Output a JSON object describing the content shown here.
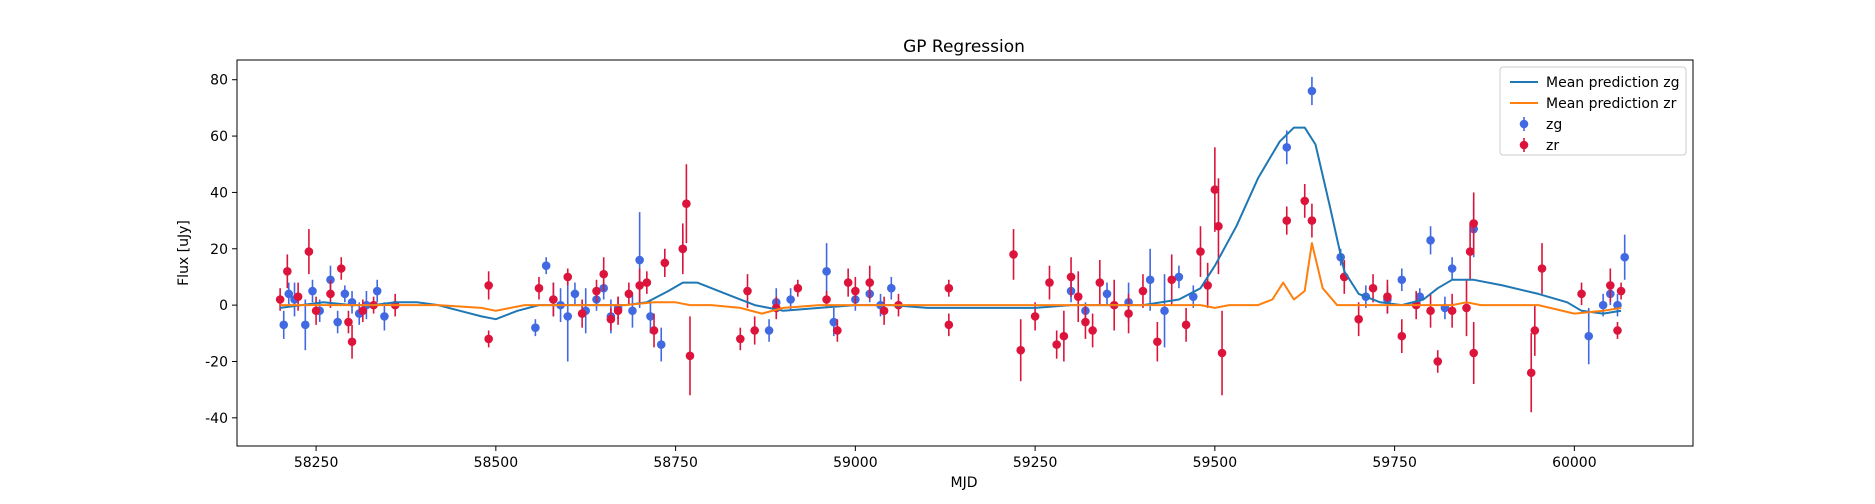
{
  "chart_data": {
    "type": "scatter",
    "title": "GP Regression",
    "xlabel": "MJD",
    "ylabel": "Flux [uJy]",
    "xlim": [
      58140,
      60165
    ],
    "ylim": [
      -50,
      87
    ],
    "xticks": [
      58250,
      58500,
      58750,
      59000,
      59250,
      59500,
      59750,
      60000
    ],
    "yticks": [
      -40,
      -20,
      0,
      20,
      40,
      60,
      80
    ],
    "legend_position": "top-right",
    "grid": false,
    "colors": {
      "line_zg": "#1f77b4",
      "line_zr": "#ff7f0e",
      "pts_zg": "#4169e1",
      "pts_zr": "#dc143c"
    },
    "legend": [
      {
        "label": "Mean prediction zg",
        "kind": "line",
        "color": "#1f77b4"
      },
      {
        "label": "Mean prediction zr",
        "kind": "line",
        "color": "#ff7f0e"
      },
      {
        "label": "zg",
        "kind": "point",
        "color": "#4169e1"
      },
      {
        "label": "zr",
        "kind": "point",
        "color": "#dc143c"
      }
    ],
    "lines": {
      "zg": {
        "name": "Mean prediction zg",
        "x": [
          58200,
          58230,
          58260,
          58300,
          58330,
          58360,
          58390,
          58420,
          58450,
          58480,
          58500,
          58530,
          58560,
          58600,
          58640,
          58680,
          58710,
          58740,
          58760,
          58780,
          58800,
          58830,
          58860,
          58900,
          58950,
          59000,
          59050,
          59100,
          59150,
          59200,
          59250,
          59300,
          59350,
          59400,
          59450,
          59480,
          59500,
          59530,
          59560,
          59590,
          59610,
          59625,
          59640,
          59660,
          59680,
          59700,
          59730,
          59760,
          59790,
          59810,
          59830,
          59860,
          59900,
          59950,
          59990,
          60010,
          60040,
          60065
        ],
        "y": [
          -1,
          0,
          1,
          0,
          0,
          1,
          1,
          0,
          -2,
          -4,
          -5,
          -2,
          0,
          0,
          0,
          0,
          1,
          5,
          8,
          8,
          6,
          3,
          0,
          -2,
          -1,
          0,
          0,
          -1,
          -1,
          -1,
          -1,
          0,
          0,
          0,
          2,
          6,
          14,
          28,
          45,
          58,
          63,
          63,
          57,
          35,
          12,
          4,
          1,
          0,
          2,
          6,
          9,
          9,
          7,
          4,
          1,
          -2,
          -3,
          -2
        ]
      },
      "zr": {
        "name": "Mean prediction zr",
        "x": [
          58200,
          58300,
          58420,
          58480,
          58500,
          58540,
          58600,
          58680,
          58720,
          58750,
          58770,
          58800,
          58840,
          58870,
          58900,
          58950,
          59000,
          59100,
          59200,
          59300,
          59400,
          59450,
          59480,
          59500,
          59520,
          59560,
          59580,
          59595,
          59610,
          59625,
          59635,
          59650,
          59670,
          59700,
          59750,
          59800,
          59830,
          59850,
          59870,
          59900,
          59950,
          60000,
          60040,
          60065
        ],
        "y": [
          0,
          0,
          0,
          -1,
          -2,
          0,
          0,
          0,
          1,
          1,
          0,
          0,
          -1,
          -3,
          -1,
          0,
          0,
          0,
          0,
          0,
          0,
          0,
          0,
          -1,
          0,
          0,
          2,
          8,
          2,
          5,
          22,
          6,
          0,
          0,
          0,
          0,
          0,
          1,
          0,
          0,
          0,
          -3,
          -2,
          -1
        ]
      }
    },
    "series": [
      {
        "name": "zg",
        "x": [
          58205,
          58212,
          58220,
          58235,
          58245,
          58255,
          58270,
          58280,
          58290,
          58300,
          58310,
          58320,
          58335,
          58345,
          58555,
          58570,
          58580,
          58590,
          58600,
          58610,
          58625,
          58640,
          58650,
          58660,
          58670,
          58690,
          58700,
          58715,
          58730,
          58760,
          58880,
          58890,
          58910,
          58960,
          58970,
          59000,
          59020,
          59035,
          59050,
          59300,
          59320,
          59350,
          59380,
          59410,
          59430,
          59450,
          59470,
          59600,
          59635,
          59675,
          59680,
          59710,
          59740,
          59760,
          59785,
          59800,
          59820,
          59830,
          59860,
          60020,
          60040,
          60050,
          60060,
          60070
        ],
        "y": [
          -7,
          4,
          2,
          -7,
          5,
          -2,
          9,
          -6,
          4,
          1,
          -3,
          0,
          5,
          -4,
          -8,
          14,
          2,
          0,
          -4,
          4,
          -2,
          2,
          6,
          -4,
          -1,
          -2,
          16,
          -4,
          -14,
          20,
          -9,
          1,
          2,
          12,
          -6,
          2,
          4,
          0,
          6,
          5,
          -2,
          4,
          1,
          9,
          -2,
          10,
          3,
          56,
          76,
          17,
          10,
          3,
          2,
          9,
          3,
          23,
          -1,
          13,
          27,
          -11,
          0,
          4,
          0,
          17
        ],
        "err": [
          5,
          4,
          6,
          9,
          4,
          4,
          5,
          4,
          3,
          4,
          4,
          5,
          4,
          5,
          3,
          3,
          6,
          6,
          16,
          4,
          8,
          4,
          4,
          6,
          4,
          6,
          17,
          6,
          6,
          7,
          4,
          5,
          4,
          10,
          5,
          4,
          3,
          4,
          4,
          4,
          3,
          4,
          7,
          11,
          13,
          4,
          4,
          6,
          5,
          3,
          4,
          4,
          5,
          4,
          3,
          5,
          4,
          4,
          10,
          10,
          4,
          4,
          4,
          8
        ]
      },
      {
        "name": "zr",
        "x": [
          58200,
          58210,
          58225,
          58240,
          58250,
          58270,
          58285,
          58295,
          58300,
          58315,
          58330,
          58360,
          58490,
          58490,
          58560,
          58580,
          58600,
          58620,
          58640,
          58650,
          58660,
          58670,
          58685,
          58700,
          58710,
          58720,
          58735,
          58760,
          58765,
          58770,
          58840,
          58850,
          58860,
          58890,
          58920,
          58960,
          58975,
          58990,
          59000,
          59020,
          59040,
          59060,
          59130,
          59130,
          59220,
          59230,
          59250,
          59270,
          59280,
          59290,
          59300,
          59310,
          59320,
          59330,
          59340,
          59360,
          59380,
          59400,
          59420,
          59440,
          59460,
          59480,
          59490,
          59500,
          59505,
          59510,
          59600,
          59625,
          59635,
          59680,
          59700,
          59720,
          59740,
          59760,
          59780,
          59800,
          59810,
          59830,
          59850,
          59855,
          59860,
          59860,
          59940,
          59945,
          59955,
          60010,
          60050,
          60060,
          60065
        ],
        "y": [
          2,
          12,
          3,
          19,
          -2,
          4,
          13,
          -6,
          -13,
          -2,
          0,
          0,
          -12,
          7,
          6,
          2,
          10,
          -3,
          5,
          11,
          -5,
          -2,
          4,
          7,
          8,
          -9,
          15,
          20,
          36,
          -18,
          -12,
          5,
          -9,
          -1,
          6,
          2,
          -9,
          8,
          5,
          8,
          -2,
          0,
          6,
          -7,
          18,
          -16,
          -4,
          8,
          -14,
          -11,
          10,
          3,
          -6,
          -9,
          8,
          0,
          -3,
          5,
          -13,
          9,
          -7,
          19,
          7,
          41,
          28,
          -17,
          30,
          37,
          30,
          10,
          -5,
          6,
          3,
          -11,
          0,
          -2,
          -20,
          -2,
          -1,
          19,
          29,
          -17,
          -24,
          -9,
          13,
          4,
          7,
          -9,
          5
        ],
        "err": [
          4,
          6,
          5,
          8,
          5,
          5,
          4,
          4,
          6,
          4,
          3,
          4,
          3,
          5,
          4,
          6,
          3,
          5,
          4,
          6,
          4,
          5,
          4,
          6,
          4,
          6,
          5,
          9,
          14,
          14,
          4,
          6,
          5,
          4,
          3,
          3,
          4,
          5,
          5,
          6,
          5,
          4,
          3,
          4,
          9,
          11,
          5,
          6,
          5,
          9,
          7,
          9,
          6,
          6,
          8,
          9,
          7,
          6,
          7,
          9,
          6,
          9,
          8,
          15,
          17,
          15,
          5,
          6,
          6,
          6,
          6,
          5,
          6,
          6,
          5,
          6,
          4,
          6,
          10,
          10,
          11,
          11,
          14,
          9,
          9,
          4,
          6,
          3,
          3
        ]
      }
    ]
  }
}
